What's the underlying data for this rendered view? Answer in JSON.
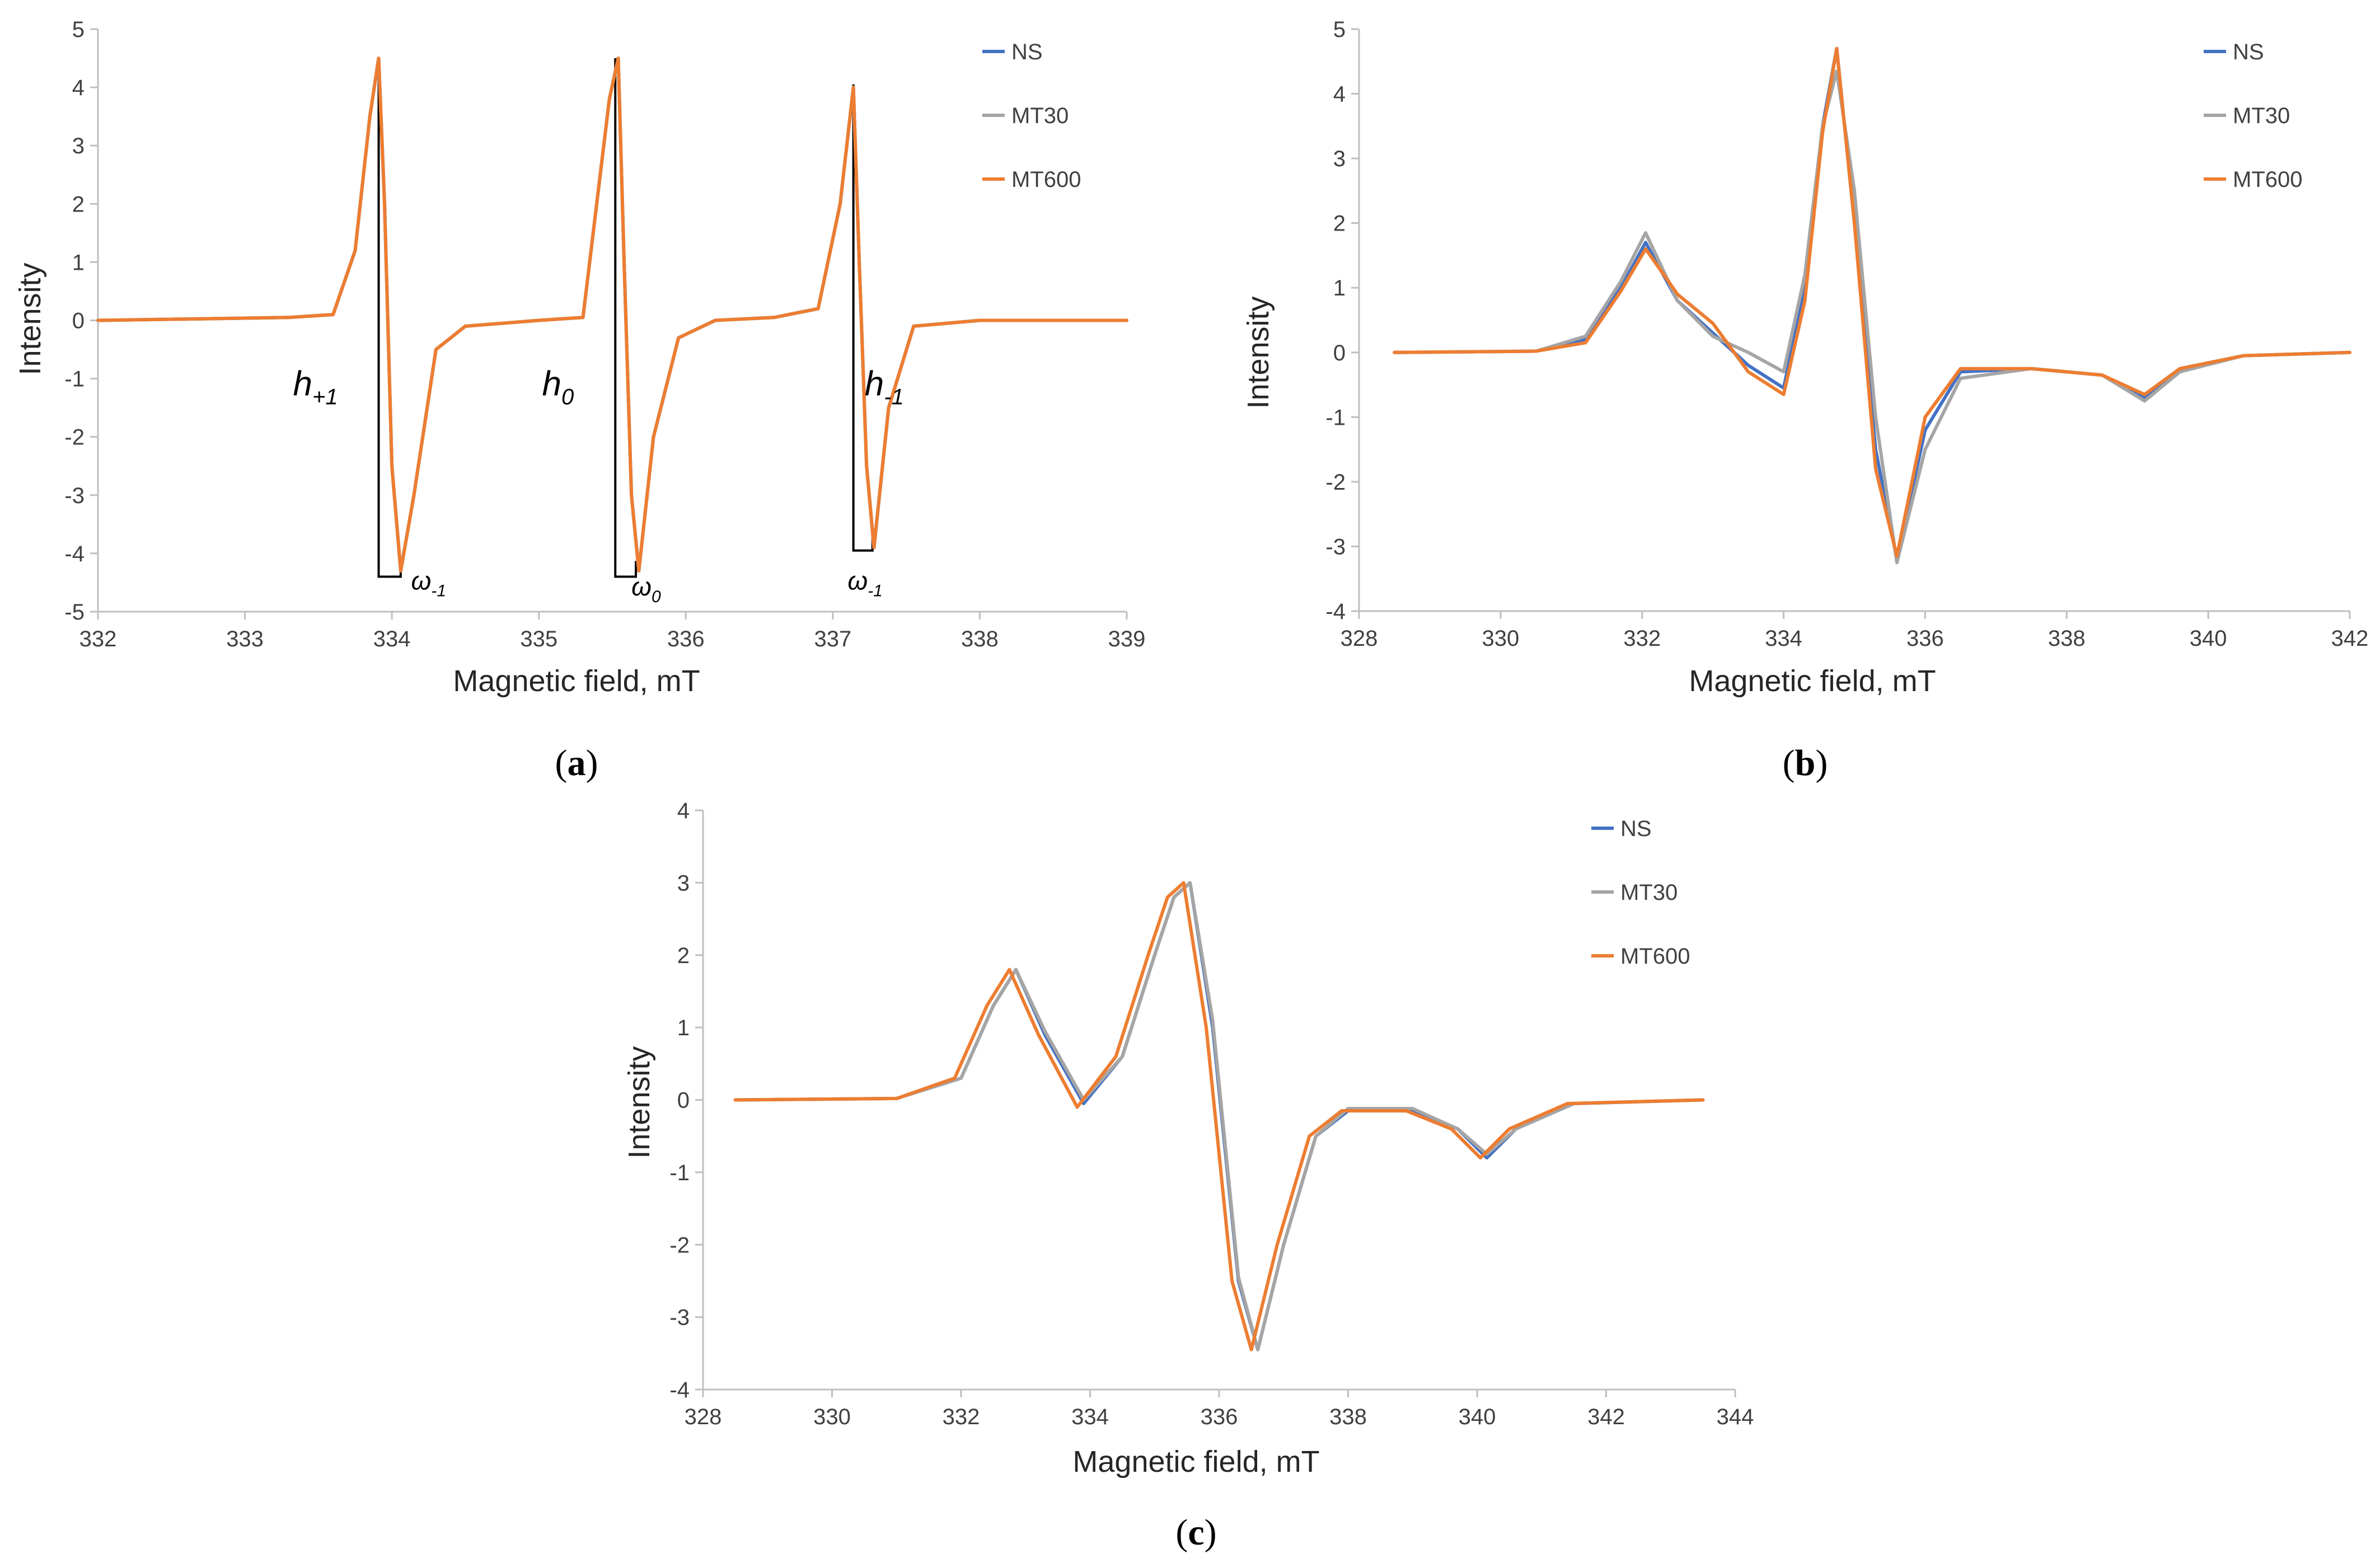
{
  "colors": {
    "NS": "#4472C4",
    "MT30": "#A5A5A5",
    "MT600": "#ED7D31",
    "axis": "#BFBFBF",
    "text": "#404040"
  },
  "chart_data": [
    {
      "panel": "a",
      "caption": {
        "open": "(",
        "letter": "a",
        "close": ")"
      },
      "type": "line",
      "xlabel": "Magnetic field, mT",
      "ylabel": "Intensity",
      "xlim": [
        332,
        339
      ],
      "ylim": [
        -5,
        5
      ],
      "xticks": [
        "332",
        "333",
        "334",
        "335",
        "336",
        "337",
        "338",
        "339"
      ],
      "yticks": [
        "5",
        "4",
        "3",
        "2",
        "1",
        "0",
        "-1",
        "-2",
        "-3",
        "-4",
        "-5"
      ],
      "grid": false,
      "legend": {
        "position": "top-right",
        "entries": [
          "NS",
          "MT30",
          "MT600"
        ]
      },
      "series": [
        {
          "name": "NS",
          "x": [
            332,
            333.3,
            333.6,
            333.75,
            333.85,
            333.91,
            333.95,
            334.0,
            334.06,
            334.15,
            334.3,
            334.5,
            335.0,
            335.3,
            335.48,
            335.54,
            335.58,
            335.63,
            335.68,
            335.78,
            335.95,
            336.2,
            336.6,
            336.9,
            337.05,
            337.14,
            337.18,
            337.23,
            337.28,
            337.38,
            337.55,
            338.0,
            339.0
          ],
          "y": [
            0,
            0.05,
            0.1,
            1.2,
            3.5,
            4.5,
            2.0,
            -2.5,
            -4.3,
            -3.0,
            -0.5,
            -0.1,
            0,
            0.05,
            3.8,
            4.5,
            1.0,
            -3.0,
            -4.3,
            -2.0,
            -0.3,
            0,
            0.05,
            0.2,
            2.0,
            4.0,
            1.0,
            -2.5,
            -3.9,
            -1.5,
            -0.1,
            0,
            0
          ]
        },
        {
          "name": "MT30",
          "x": [
            332,
            333.3,
            333.6,
            333.75,
            333.85,
            333.91,
            333.95,
            334.0,
            334.06,
            334.15,
            334.3,
            334.5,
            335.0,
            335.3,
            335.48,
            335.54,
            335.58,
            335.63,
            335.68,
            335.78,
            335.95,
            336.2,
            336.6,
            336.9,
            337.05,
            337.14,
            337.18,
            337.23,
            337.28,
            337.38,
            337.55,
            338.0,
            339.0
          ],
          "y": [
            0,
            0.05,
            0.1,
            1.2,
            3.5,
            4.5,
            2.0,
            -2.5,
            -4.3,
            -3.0,
            -0.5,
            -0.1,
            0,
            0.05,
            3.8,
            4.5,
            1.0,
            -3.0,
            -4.3,
            -2.0,
            -0.3,
            0,
            0.05,
            0.2,
            2.0,
            4.0,
            1.0,
            -2.5,
            -3.9,
            -1.5,
            -0.1,
            0,
            0
          ]
        },
        {
          "name": "MT600",
          "x": [
            332,
            333.3,
            333.6,
            333.75,
            333.85,
            333.91,
            333.95,
            334.0,
            334.06,
            334.15,
            334.3,
            334.5,
            335.0,
            335.3,
            335.48,
            335.54,
            335.58,
            335.63,
            335.68,
            335.78,
            335.95,
            336.2,
            336.6,
            336.9,
            337.05,
            337.14,
            337.18,
            337.23,
            337.28,
            337.38,
            337.55,
            338.0,
            339.0
          ],
          "y": [
            0,
            0.05,
            0.1,
            1.2,
            3.5,
            4.5,
            2.0,
            -2.5,
            -4.3,
            -3.0,
            -0.5,
            -0.1,
            0,
            0.05,
            3.8,
            4.5,
            1.0,
            -3.0,
            -4.3,
            -2.0,
            -0.3,
            0,
            0.05,
            0.2,
            2.0,
            4.0,
            1.0,
            -2.5,
            -3.9,
            -1.5,
            -0.1,
            0,
            0
          ]
        }
      ],
      "annotations": [
        {
          "base": "h",
          "sub": "+1",
          "x": 333.48,
          "y": -1.0,
          "role": "h"
        },
        {
          "base": "h",
          "sub": "0",
          "x": 335.13,
          "y": -1.0,
          "role": "h"
        },
        {
          "base": "h",
          "sub": "-1",
          "x": 337.35,
          "y": -1.0,
          "role": "h"
        },
        {
          "base": "ω",
          "sub": "-1",
          "x": 334.25,
          "y": -4.45,
          "role": "w"
        },
        {
          "base": "ω",
          "sub": "0",
          "x": 335.73,
          "y": -4.55,
          "role": "w"
        },
        {
          "base": "ω",
          "sub": "-1",
          "x": 337.22,
          "y": -4.45,
          "role": "w"
        }
      ],
      "brackets": [
        {
          "x1": 333.91,
          "x2": 334.06,
          "ytop": 4.5,
          "ybottom": -4.4
        },
        {
          "x1": 335.52,
          "x2": 335.66,
          "ytop": 4.5,
          "ybottom": -4.4
        },
        {
          "x1": 337.14,
          "x2": 337.27,
          "ytop": 4.05,
          "ybottom": -3.95
        }
      ]
    },
    {
      "panel": "b",
      "caption": {
        "open": "(",
        "letter": "b",
        "close": ")"
      },
      "type": "line",
      "xlabel": "Magnetic field, mT",
      "ylabel": "Intensity",
      "xlim": [
        328,
        342
      ],
      "ylim": [
        -4,
        5
      ],
      "xticks": [
        "328",
        "330",
        "332",
        "334",
        "336",
        "338",
        "340",
        "342"
      ],
      "yticks": [
        "5",
        "4",
        "3",
        "2",
        "1",
        "0",
        "-1",
        "-2",
        "-3",
        "-4"
      ],
      "grid": false,
      "legend": {
        "position": "top-right",
        "entries": [
          "NS",
          "MT30",
          "MT600"
        ]
      },
      "series": [
        {
          "name": "NS",
          "x": [
            328.5,
            330.5,
            331.2,
            331.7,
            332.05,
            332.5,
            333.0,
            333.5,
            334.0,
            334.3,
            334.55,
            334.75,
            335.0,
            335.3,
            335.6,
            336.0,
            336.5,
            337.5,
            338.5,
            339.1,
            339.6,
            340.5,
            342.0
          ],
          "y": [
            0,
            0.02,
            0.2,
            1.0,
            1.7,
            0.8,
            0.3,
            -0.2,
            -0.55,
            1.0,
            3.5,
            4.7,
            2.0,
            -1.5,
            -3.2,
            -1.2,
            -0.3,
            -0.25,
            -0.35,
            -0.7,
            -0.25,
            -0.05,
            0
          ]
        },
        {
          "name": "MT30",
          "x": [
            328.5,
            330.5,
            331.2,
            331.7,
            332.05,
            332.5,
            333.0,
            333.5,
            334.0,
            334.3,
            334.55,
            334.75,
            335.0,
            335.3,
            335.6,
            336.0,
            336.5,
            337.5,
            338.5,
            339.1,
            339.6,
            340.5,
            342.0
          ],
          "y": [
            0,
            0.02,
            0.25,
            1.1,
            1.85,
            0.8,
            0.25,
            0.0,
            -0.3,
            1.2,
            3.5,
            4.35,
            2.5,
            -1.0,
            -3.25,
            -1.5,
            -0.4,
            -0.25,
            -0.35,
            -0.75,
            -0.3,
            -0.05,
            0
          ]
        },
        {
          "name": "MT600",
          "x": [
            328.5,
            330.5,
            331.2,
            331.7,
            332.05,
            332.5,
            333.0,
            333.5,
            334.0,
            334.3,
            334.55,
            334.75,
            335.0,
            335.3,
            335.6,
            336.0,
            336.5,
            337.5,
            338.5,
            339.1,
            339.6,
            340.5,
            342.0
          ],
          "y": [
            0,
            0.02,
            0.15,
            0.95,
            1.6,
            0.9,
            0.45,
            -0.3,
            -0.65,
            0.8,
            3.4,
            4.7,
            2.0,
            -1.8,
            -3.15,
            -1.0,
            -0.25,
            -0.25,
            -0.35,
            -0.65,
            -0.25,
            -0.05,
            0
          ]
        }
      ]
    },
    {
      "panel": "c",
      "caption": {
        "open": "(",
        "letter": "c",
        "close": ")"
      },
      "type": "line",
      "xlabel": "Magnetic field, mT",
      "ylabel": "Intensity",
      "xlim": [
        328,
        344
      ],
      "ylim": [
        -4,
        4
      ],
      "xticks": [
        "328",
        "330",
        "332",
        "334",
        "336",
        "338",
        "340",
        "342",
        "344"
      ],
      "yticks": [
        "4",
        "3",
        "2",
        "1",
        "0",
        "-1",
        "-2",
        "-3",
        "-4"
      ],
      "grid": false,
      "legend": {
        "position": "top-right",
        "entries": [
          "NS",
          "MT30",
          "MT600"
        ]
      },
      "series": [
        {
          "name": "NS",
          "x": [
            328.5,
            331.0,
            332.0,
            332.5,
            332.85,
            333.3,
            333.9,
            334.5,
            335.0,
            335.3,
            335.55,
            335.9,
            336.3,
            336.6,
            337.0,
            337.5,
            338.0,
            339.0,
            339.7,
            340.15,
            340.6,
            341.5,
            343.5
          ],
          "y": [
            0,
            0.02,
            0.3,
            1.3,
            1.8,
            0.9,
            -0.05,
            0.6,
            2.0,
            2.8,
            3.0,
            1.0,
            -2.5,
            -3.45,
            -2.0,
            -0.5,
            -0.15,
            -0.15,
            -0.4,
            -0.8,
            -0.4,
            -0.05,
            0
          ]
        },
        {
          "name": "MT30",
          "x": [
            328.5,
            331.0,
            332.0,
            332.5,
            332.85,
            333.3,
            333.9,
            334.5,
            335.0,
            335.3,
            335.55,
            335.9,
            336.3,
            336.6,
            337.0,
            337.5,
            338.0,
            339.0,
            339.7,
            340.15,
            340.6,
            341.5,
            343.5
          ],
          "y": [
            0,
            0.02,
            0.3,
            1.3,
            1.8,
            0.95,
            0.0,
            0.6,
            2.0,
            2.8,
            3.0,
            1.1,
            -2.45,
            -3.45,
            -2.0,
            -0.5,
            -0.12,
            -0.12,
            -0.4,
            -0.75,
            -0.4,
            -0.05,
            0
          ]
        },
        {
          "name": "MT600",
          "x": [
            328.5,
            331.0,
            331.9,
            332.4,
            332.75,
            333.2,
            333.8,
            334.4,
            334.9,
            335.2,
            335.45,
            335.8,
            336.2,
            336.5,
            336.9,
            337.4,
            337.9,
            338.9,
            339.6,
            340.05,
            340.5,
            341.4,
            343.5
          ],
          "y": [
            0,
            0.02,
            0.3,
            1.3,
            1.8,
            0.9,
            -0.1,
            0.6,
            2.0,
            2.8,
            3.0,
            1.0,
            -2.5,
            -3.45,
            -2.0,
            -0.5,
            -0.15,
            -0.15,
            -0.4,
            -0.8,
            -0.4,
            -0.05,
            0
          ]
        }
      ]
    }
  ]
}
